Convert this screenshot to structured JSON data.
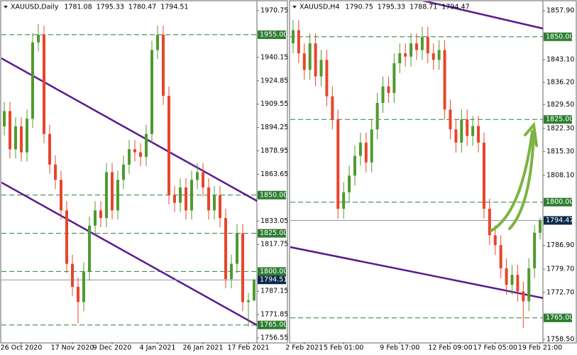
{
  "chart_data": [
    {
      "type": "candlestick",
      "symbol": "XAUUSD,Daily",
      "ohlc": [
        1781.08,
        1795.33,
        1780.47,
        1794.51
      ],
      "categories": [
        null,
        null,
        null,
        "26 Oct 2020",
        null,
        null,
        null,
        null,
        null,
        null,
        null,
        null,
        "17 Nov 2020",
        null,
        null,
        null,
        null,
        null,
        null,
        "9 Dec 2020",
        null,
        null,
        null,
        null,
        null,
        null,
        null,
        "4 Jan 2021",
        null,
        null,
        null,
        null,
        null,
        null,
        null,
        "26 Jan 2021",
        null,
        null,
        null,
        null,
        null,
        null,
        null,
        "17 Feb 2021",
        null
      ],
      "open": [
        1895,
        1905,
        1880,
        1895,
        1878,
        1900,
        1950,
        1955,
        1890,
        1870,
        1860,
        1840,
        1805,
        1790,
        1780,
        1800,
        1830,
        1840,
        1835,
        1865,
        1840,
        1860,
        1870,
        1880,
        1878,
        1875,
        1890,
        1945,
        1955,
        1915,
        1850,
        1845,
        1855,
        1840,
        1860,
        1865,
        1855,
        1840,
        1850,
        1835,
        1795,
        1805,
        1825,
        1780,
        1781.08
      ],
      "high": [
        1911,
        1911,
        1901,
        1901,
        1906,
        1956,
        1962,
        1961,
        1896,
        1876,
        1866,
        1846,
        1811,
        1796,
        1806,
        1836,
        1846,
        1846,
        1871,
        1871,
        1866,
        1876,
        1886,
        1886,
        1884,
        1896,
        1951,
        1961,
        1961,
        1921,
        1856,
        1861,
        1861,
        1866,
        1871,
        1871,
        1861,
        1856,
        1856,
        1841,
        1811,
        1831,
        1831,
        1786,
        1795.33
      ],
      "low": [
        1889,
        1874,
        1874,
        1872,
        1872,
        1894,
        1944,
        1884,
        1864,
        1854,
        1834,
        1799,
        1784,
        1766,
        1774,
        1794,
        1824,
        1829,
        1829,
        1834,
        1834,
        1854,
        1864,
        1872,
        1869,
        1869,
        1884,
        1939,
        1909,
        1844,
        1839,
        1839,
        1834,
        1834,
        1854,
        1849,
        1834,
        1834,
        1829,
        1789,
        1789,
        1799,
        1774,
        1764,
        1780.47
      ],
      "close": [
        1905,
        1880,
        1895,
        1878,
        1900,
        1950,
        1955,
        1890,
        1870,
        1860,
        1840,
        1805,
        1790,
        1780,
        1800,
        1830,
        1840,
        1835,
        1865,
        1840,
        1860,
        1870,
        1880,
        1878,
        1875,
        1890,
        1945,
        1955,
        1915,
        1850,
        1845,
        1855,
        1840,
        1860,
        1865,
        1855,
        1840,
        1850,
        1835,
        1795,
        1805,
        1825,
        1780,
        1781.08,
        1794.51
      ],
      "ylim": [
        1753.7,
        1976.8
      ],
      "yticks": [
        1970.75,
        1940.15,
        1924.85,
        1909.55,
        1894.25,
        1878.95,
        1863.65,
        1833.05,
        1817.75,
        1787.15,
        1771.85,
        1756.55
      ],
      "levels": [
        {
          "value": 1955,
          "label": "1955.00"
        },
        {
          "value": 1850,
          "label": "1850.00"
        },
        {
          "value": 1825,
          "label": "1825.00"
        },
        {
          "value": 1800,
          "label": "1800.00"
        },
        {
          "value": 1765,
          "label": "1765.00"
        }
      ],
      "level_color": "#2e7d32",
      "bull_color": "#4f9a2f",
      "bear_color": "#e8452c",
      "trendlines": [
        {
          "color": "#5b1a8f",
          "values": [
            1939.6,
            1846.2
          ]
        },
        {
          "color": "#5b1a8f",
          "values": [
            1858.3,
            1764.9
          ]
        }
      ]
    },
    {
      "type": "candlestick",
      "symbol": "XAUUSD,H4",
      "ohlc": [
        1790.75,
        1795.33,
        1788.71,
        1794.47
      ],
      "categories": [
        null,
        null,
        "2 Feb 2021",
        null,
        null,
        null,
        null,
        null,
        null,
        "5 Feb 01:00",
        null,
        null,
        null,
        null,
        null,
        null,
        null,
        null,
        null,
        "9 Feb 17:00",
        null,
        null,
        null,
        null,
        null,
        null,
        null,
        null,
        "12 Feb 09:00",
        null,
        null,
        null,
        null,
        null,
        null,
        null,
        "17 Feb 05:00",
        null,
        null,
        null,
        null,
        null,
        null,
        null,
        "19 Feb 21:00"
      ],
      "open": [
        1848,
        1852,
        1845,
        1840,
        1848,
        1838,
        1843,
        1832,
        1825,
        1798,
        1803,
        1808,
        1814,
        1818,
        1812,
        1822,
        1830,
        1835,
        1833,
        1842,
        1845,
        1844,
        1848,
        1846,
        1850,
        1845,
        1843,
        1846,
        1828,
        1822,
        1818,
        1825,
        1820,
        1823,
        1818,
        1798,
        1790,
        1787,
        1780,
        1775,
        1778,
        1773,
        1770,
        1780,
        1790.75
      ],
      "high": [
        1855,
        1855,
        1848,
        1851,
        1851,
        1846,
        1846,
        1835,
        1828,
        1806,
        1811,
        1817,
        1821,
        1821,
        1825,
        1833,
        1838,
        1838,
        1845,
        1848,
        1848,
        1851,
        1851,
        1853,
        1853,
        1848,
        1849,
        1849,
        1831,
        1825,
        1828,
        1828,
        1826,
        1826,
        1821,
        1801,
        1793,
        1790,
        1783,
        1781,
        1781,
        1776,
        1783,
        1793,
        1795.33
      ],
      "low": [
        1845,
        1842,
        1837,
        1837,
        1835,
        1835,
        1829,
        1822,
        1795,
        1795,
        1800,
        1805,
        1811,
        1809,
        1809,
        1819,
        1827,
        1830,
        1830,
        1839,
        1841,
        1841,
        1843,
        1843,
        1842,
        1840,
        1840,
        1825,
        1819,
        1815,
        1815,
        1817,
        1817,
        1815,
        1795,
        1787,
        1784,
        1777,
        1772,
        1772,
        1770,
        1762,
        1767,
        1777,
        1788.71
      ],
      "close": [
        1852,
        1845,
        1840,
        1848,
        1838,
        1843,
        1832,
        1825,
        1798,
        1803,
        1808,
        1814,
        1818,
        1812,
        1822,
        1830,
        1835,
        1833,
        1842,
        1845,
        1844,
        1848,
        1846,
        1850,
        1845,
        1843,
        1846,
        1828,
        1822,
        1818,
        1825,
        1820,
        1823,
        1818,
        1798,
        1790,
        1787,
        1780,
        1775,
        1778,
        1773,
        1770,
        1780,
        1790.75,
        1794.47
      ],
      "ylim": [
        1757.64,
        1860.69
      ],
      "yticks": [
        {
          "value": 1857.9,
          "label": "1857.90"
        },
        {
          "value": 1843.1,
          "label": "1843.10"
        },
        {
          "value": 1836.2,
          "label": "1836.20"
        },
        {
          "value": 1829.5,
          "label": "1829.50"
        },
        {
          "value": 1822.3,
          "label": "1822.30"
        },
        {
          "value": 1815.3,
          "label": "1815.30"
        },
        {
          "value": 1808.1,
          "label": "1808.10"
        },
        {
          "value": 1786.9,
          "label": "1786.90"
        },
        {
          "value": 1779.7,
          "label": "1779.70"
        },
        {
          "value": 1772.7,
          "label": "1772.70"
        },
        {
          "value": 1758.5,
          "label": "1758.50"
        }
      ],
      "levels": [
        {
          "value": 1850,
          "label": "1850.00"
        },
        {
          "value": 1825,
          "label": "1825.00"
        },
        {
          "value": 1800,
          "label": "1800.00"
        },
        {
          "value": 1765,
          "label": "1765.00"
        }
      ],
      "level_color": "#2e7d32",
      "bull_color": "#4f9a2f",
      "bear_color": "#e8452c",
      "trendlines": [
        {
          "color": "#5b1a8f",
          "values": [
            1870.2,
            1852.5
          ]
        },
        {
          "color": "#5b1a8f",
          "values": [
            1786.4,
            1771.0
          ]
        }
      ]
    }
  ]
}
